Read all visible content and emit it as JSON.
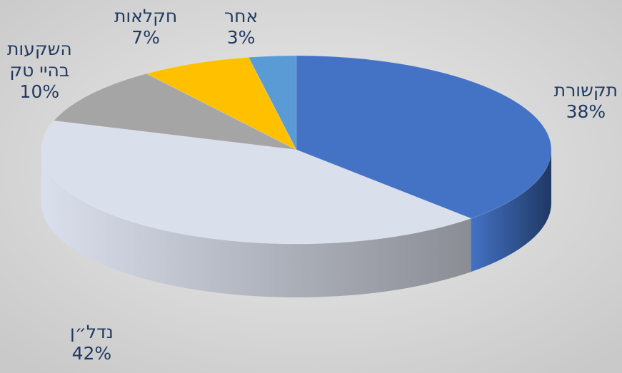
{
  "chart_data": {
    "type": "pie",
    "title": "",
    "slices": [
      {
        "label": "תקשורת",
        "value": 38,
        "display": "38%",
        "color": "#4472c4",
        "side_color": "#1f3864"
      },
      {
        "label": "נדל״ן",
        "value": 42,
        "display": "42%",
        "color": "#dadfec",
        "side_color": "#8a8d94"
      },
      {
        "label": "השקעות בהיי טק",
        "label_lines": [
          "השקעות",
          "בהיי טק"
        ],
        "value": 10,
        "display": "10%",
        "color": "#a5a5a5",
        "side_color": "#6e6e6e"
      },
      {
        "label": "חקלאות",
        "value": 7,
        "display": "7%",
        "color": "#ffc000",
        "side_color": "#b38600"
      },
      {
        "label": "אחר",
        "value": 3,
        "display": "3%",
        "color": "#5b9bd5",
        "side_color": "#2e5f8c"
      }
    ],
    "style": "3d-pie",
    "legend": "none"
  }
}
